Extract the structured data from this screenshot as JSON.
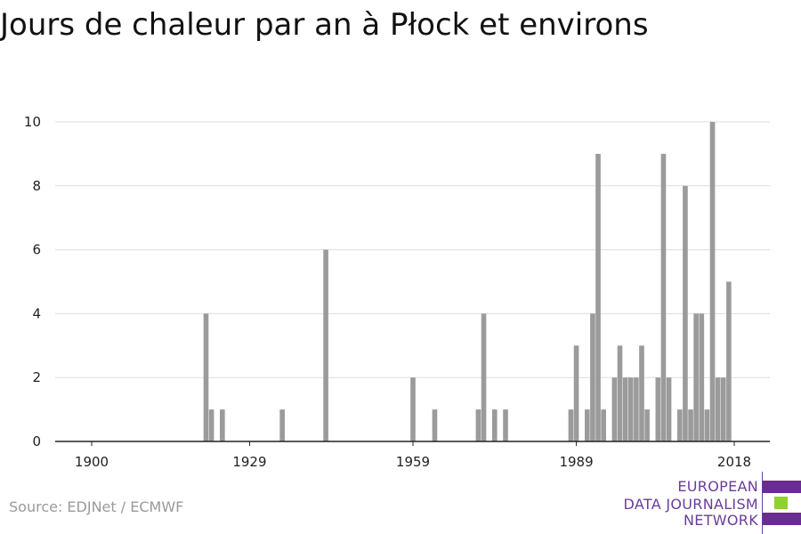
{
  "chart_data": {
    "type": "bar",
    "title": "Jours de chaleur par an à Płock et environs",
    "xlabel": "",
    "ylabel": "",
    "xlim": [
      1900,
      2018
    ],
    "ylim": [
      0,
      10
    ],
    "x_ticks": [
      1900,
      1929,
      1959,
      1989,
      2018
    ],
    "y_ticks": [
      0,
      2,
      4,
      6,
      8,
      10
    ],
    "grid": "horizontal",
    "bar_color": "#9b9b9b",
    "series": [
      {
        "x": [
          1921,
          1922,
          1924,
          1935,
          1943,
          1959,
          1963,
          1971,
          1972,
          1974,
          1976,
          1988,
          1989,
          1991,
          1992,
          1993,
          1994,
          1996,
          1997,
          1998,
          1999,
          2000,
          2001,
          2002,
          2004,
          2005,
          2006,
          2008,
          2009,
          2010,
          2011,
          2012,
          2013,
          2014,
          2015,
          2016,
          2017
        ],
        "values": [
          4,
          1,
          1,
          1,
          6,
          2,
          1,
          1,
          4,
          1,
          1,
          1,
          3,
          1,
          4,
          9,
          1,
          2,
          3,
          2,
          2,
          2,
          3,
          1,
          2,
          9,
          2,
          1,
          8,
          1,
          4,
          4,
          1,
          10,
          2,
          2,
          5
        ]
      }
    ]
  },
  "source": "Source: EDJNet / ECMWF",
  "logo": {
    "lines": [
      "EUROPEAN",
      "DATA JOURNALISM",
      "NETWORK"
    ],
    "colors": [
      "#6a2c91",
      "#8fd12f",
      "#6a2c91"
    ]
  }
}
